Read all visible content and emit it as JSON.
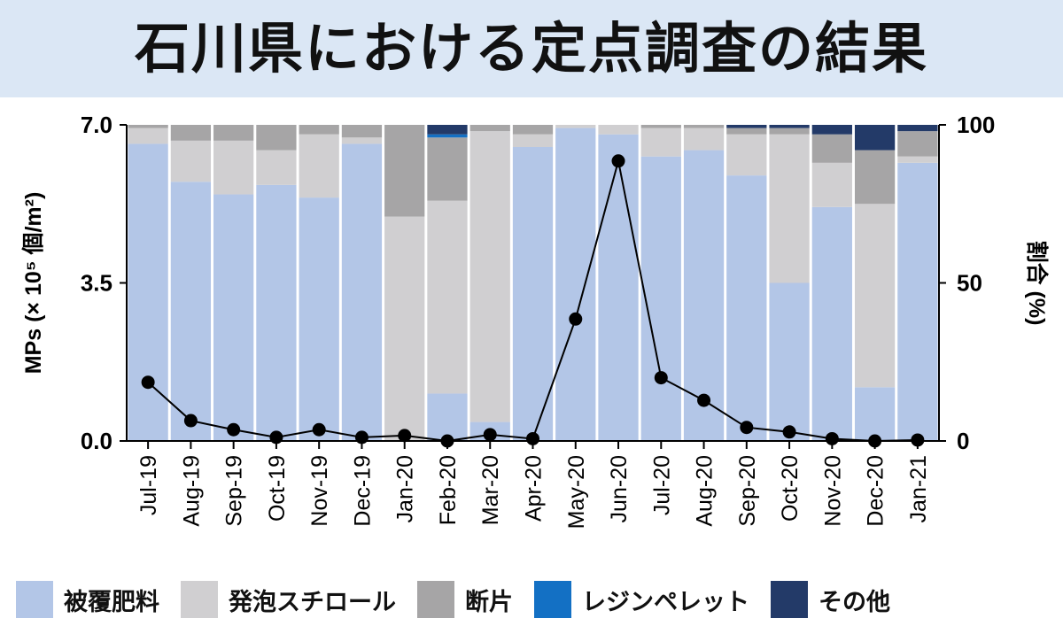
{
  "header": {
    "title": "石川県における定点調査の結果"
  },
  "colors": {
    "被覆肥料": "#b3c6e7",
    "発泡スチロール": "#d0cfd1",
    "断片": "#a6a5a6",
    "レジンペレット": "#1370c4",
    "その他": "#233a68",
    "line": "#000000"
  },
  "chart_data": {
    "type": "bar",
    "stacked": true,
    "categories": [
      "Jul-19",
      "Aug-19",
      "Sep-19",
      "Oct-19",
      "Nov-19",
      "Dec-19",
      "Jan-20",
      "Feb-20",
      "Mar-20",
      "Apr-20",
      "May-20",
      "Jun-20",
      "Jul-20",
      "Aug-20",
      "Sep-20",
      "Oct-20",
      "Nov-20",
      "Dec-20",
      "Jan-21"
    ],
    "percent_series": [
      {
        "name": "被覆肥料",
        "values": [
          94,
          82,
          78,
          81,
          77,
          94,
          0,
          15,
          6,
          93,
          99,
          97,
          90,
          92,
          84,
          50,
          74,
          17,
          88
        ]
      },
      {
        "name": "発泡スチロール",
        "values": [
          5,
          13,
          17,
          11,
          20,
          2,
          71,
          61,
          92,
          4,
          1,
          3,
          9,
          7,
          13,
          47,
          14,
          58,
          2
        ]
      },
      {
        "name": "断片",
        "values": [
          1,
          5,
          5,
          8,
          3,
          4,
          29,
          20,
          2,
          3,
          0,
          0,
          1,
          1,
          2,
          2,
          9,
          17,
          8
        ]
      },
      {
        "name": "レジンペレット",
        "values": [
          0,
          0,
          0,
          0,
          0,
          0,
          0,
          1,
          0,
          0,
          0,
          0,
          0,
          0,
          0,
          0,
          0,
          0,
          0
        ]
      },
      {
        "name": "その他",
        "values": [
          0,
          0,
          0,
          0,
          0,
          0,
          0,
          3,
          0,
          0,
          0,
          0,
          0,
          0,
          1,
          1,
          3,
          8,
          2
        ]
      }
    ],
    "line_series": {
      "name": "MPs",
      "values": [
        1.3,
        0.45,
        0.25,
        0.08,
        0.25,
        0.08,
        0.12,
        0.0,
        0.14,
        0.05,
        2.7,
        6.2,
        1.4,
        0.9,
        0.3,
        0.2,
        0.05,
        0.0,
        0.02
      ]
    },
    "ylabel_left": "MPs (× 10⁵ 個/m²)",
    "ylabel_right": "割合 (%)",
    "ylim_left": [
      0,
      7.0
    ],
    "ylim_right": [
      0,
      100
    ],
    "yticks_left": [
      "0.0",
      "3.5",
      "7.0"
    ],
    "yticks_right": [
      "0",
      "50",
      "100"
    ],
    "legend": [
      "被覆肥料",
      "発泡スチロール",
      "断片",
      "レジンペレット",
      "その他"
    ]
  }
}
